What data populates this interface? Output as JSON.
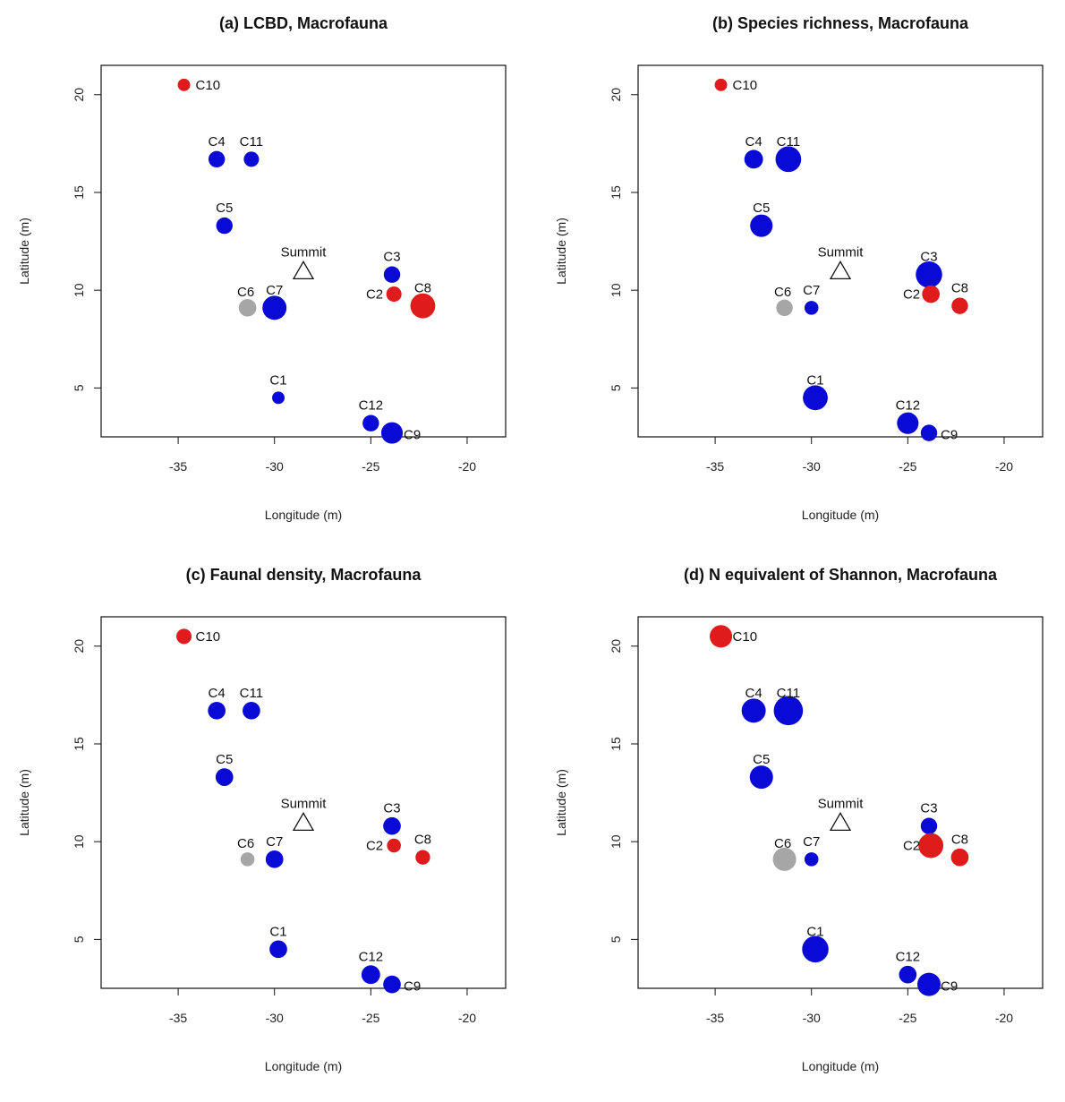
{
  "colors": {
    "blue": "#0a0ad6",
    "red": "#e01b1b",
    "gray": "#a6a6a6"
  },
  "summit": {
    "label": "Summit",
    "x": -28.5,
    "y": 11.0
  },
  "chart_data": [
    {
      "type": "scatter",
      "title": "(a) LCBD, Macrofauna",
      "xlabel": "Longitude (m)",
      "ylabel": "Latitude (m)",
      "xlim": [
        -39,
        -18
      ],
      "ylim": [
        2.5,
        21.5
      ],
      "xticks": [
        -35,
        -30,
        -25,
        -20
      ],
      "yticks": [
        5,
        10,
        15,
        20
      ],
      "points": [
        {
          "label": "C10",
          "x": -34.7,
          "y": 20.5,
          "size": 0.4,
          "color": "red"
        },
        {
          "label": "C4",
          "x": -33.0,
          "y": 16.7,
          "size": 0.7,
          "color": "blue"
        },
        {
          "label": "C11",
          "x": -31.2,
          "y": 16.7,
          "size": 0.6,
          "color": "blue"
        },
        {
          "label": "C5",
          "x": -32.6,
          "y": 13.3,
          "size": 0.7,
          "color": "blue"
        },
        {
          "label": "C6",
          "x": -31.4,
          "y": 9.1,
          "size": 0.8,
          "color": "gray"
        },
        {
          "label": "C7",
          "x": -30.0,
          "y": 9.1,
          "size": 1.5,
          "color": "blue"
        },
        {
          "label": "C1",
          "x": -29.8,
          "y": 4.5,
          "size": 0.4,
          "color": "blue"
        },
        {
          "label": "C3",
          "x": -23.9,
          "y": 10.8,
          "size": 0.7,
          "color": "blue"
        },
        {
          "label": "C2",
          "x": -23.8,
          "y": 9.8,
          "size": 0.6,
          "color": "red"
        },
        {
          "label": "C8",
          "x": -22.3,
          "y": 9.2,
          "size": 1.6,
          "color": "red"
        },
        {
          "label": "C12",
          "x": -25.0,
          "y": 3.2,
          "size": 0.7,
          "color": "blue"
        },
        {
          "label": "C9",
          "x": -23.9,
          "y": 2.7,
          "size": 1.2,
          "color": "blue"
        }
      ]
    },
    {
      "type": "scatter",
      "title": "(b) Species richness, Macrofauna",
      "xlabel": "Longitude (m)",
      "ylabel": "Latitude (m)",
      "xlim": [
        -39,
        -18
      ],
      "ylim": [
        2.5,
        21.5
      ],
      "xticks": [
        -35,
        -30,
        -25,
        -20
      ],
      "yticks": [
        5,
        10,
        15,
        20
      ],
      "points": [
        {
          "label": "C10",
          "x": -34.7,
          "y": 20.5,
          "size": 0.4,
          "color": "red"
        },
        {
          "label": "C4",
          "x": -33.0,
          "y": 16.7,
          "size": 0.9,
          "color": "blue"
        },
        {
          "label": "C11",
          "x": -31.2,
          "y": 16.7,
          "size": 1.7,
          "color": "blue"
        },
        {
          "label": "C5",
          "x": -32.6,
          "y": 13.3,
          "size": 1.3,
          "color": "blue"
        },
        {
          "label": "C6",
          "x": -31.4,
          "y": 9.1,
          "size": 0.7,
          "color": "gray"
        },
        {
          "label": "C7",
          "x": -30.0,
          "y": 9.1,
          "size": 0.5,
          "color": "blue"
        },
        {
          "label": "C1",
          "x": -29.8,
          "y": 4.5,
          "size": 1.6,
          "color": "blue"
        },
        {
          "label": "C3",
          "x": -23.9,
          "y": 10.8,
          "size": 1.8,
          "color": "blue"
        },
        {
          "label": "C2",
          "x": -23.8,
          "y": 9.8,
          "size": 0.8,
          "color": "red"
        },
        {
          "label": "C8",
          "x": -22.3,
          "y": 9.2,
          "size": 0.7,
          "color": "red"
        },
        {
          "label": "C12",
          "x": -25.0,
          "y": 3.2,
          "size": 1.2,
          "color": "blue"
        },
        {
          "label": "C9",
          "x": -23.9,
          "y": 2.7,
          "size": 0.7,
          "color": "blue"
        }
      ]
    },
    {
      "type": "scatter",
      "title": "(c) Faunal density, Macrofauna",
      "xlabel": "Longitude (m)",
      "ylabel": "Latitude (m)",
      "xlim": [
        -39,
        -18
      ],
      "ylim": [
        2.5,
        21.5
      ],
      "xticks": [
        -35,
        -30,
        -25,
        -20
      ],
      "yticks": [
        5,
        10,
        15,
        20
      ],
      "points": [
        {
          "label": "C10",
          "x": -34.7,
          "y": 20.5,
          "size": 0.6,
          "color": "red"
        },
        {
          "label": "C4",
          "x": -33.0,
          "y": 16.7,
          "size": 0.8,
          "color": "blue"
        },
        {
          "label": "C11",
          "x": -31.2,
          "y": 16.7,
          "size": 0.8,
          "color": "blue"
        },
        {
          "label": "C5",
          "x": -32.6,
          "y": 13.3,
          "size": 0.8,
          "color": "blue"
        },
        {
          "label": "C6",
          "x": -31.4,
          "y": 9.1,
          "size": 0.5,
          "color": "gray"
        },
        {
          "label": "C7",
          "x": -30.0,
          "y": 9.1,
          "size": 0.8,
          "color": "blue"
        },
        {
          "label": "C1",
          "x": -29.8,
          "y": 4.5,
          "size": 0.8,
          "color": "blue"
        },
        {
          "label": "C3",
          "x": -23.9,
          "y": 10.8,
          "size": 0.8,
          "color": "blue"
        },
        {
          "label": "C2",
          "x": -23.8,
          "y": 9.8,
          "size": 0.5,
          "color": "red"
        },
        {
          "label": "C8",
          "x": -22.3,
          "y": 9.2,
          "size": 0.55,
          "color": "red"
        },
        {
          "label": "C12",
          "x": -25.0,
          "y": 3.2,
          "size": 0.9,
          "color": "blue"
        },
        {
          "label": "C9",
          "x": -23.9,
          "y": 2.7,
          "size": 0.8,
          "color": "blue"
        }
      ]
    },
    {
      "type": "scatter",
      "title": "(d) N equivalent of Shannon, Macrofauna",
      "xlabel": "Longitude (m)",
      "ylabel": "Latitude (m)",
      "xlim": [
        -39,
        -18
      ],
      "ylim": [
        2.5,
        21.5
      ],
      "xticks": [
        -35,
        -30,
        -25,
        -20
      ],
      "yticks": [
        5,
        10,
        15,
        20
      ],
      "points": [
        {
          "label": "C10",
          "x": -34.7,
          "y": 20.5,
          "size": 1.3,
          "color": "red"
        },
        {
          "label": "C4",
          "x": -33.0,
          "y": 16.7,
          "size": 1.5,
          "color": "blue"
        },
        {
          "label": "C11",
          "x": -31.2,
          "y": 16.7,
          "size": 2.2,
          "color": "blue"
        },
        {
          "label": "C5",
          "x": -32.6,
          "y": 13.3,
          "size": 1.4,
          "color": "blue"
        },
        {
          "label": "C6",
          "x": -31.4,
          "y": 9.1,
          "size": 1.4,
          "color": "gray"
        },
        {
          "label": "C7",
          "x": -30.0,
          "y": 9.1,
          "size": 0.5,
          "color": "blue"
        },
        {
          "label": "C1",
          "x": -29.8,
          "y": 4.5,
          "size": 1.8,
          "color": "blue"
        },
        {
          "label": "C3",
          "x": -23.9,
          "y": 10.8,
          "size": 0.7,
          "color": "blue"
        },
        {
          "label": "C2",
          "x": -23.8,
          "y": 9.8,
          "size": 1.6,
          "color": "red"
        },
        {
          "label": "C8",
          "x": -22.3,
          "y": 9.2,
          "size": 0.8,
          "color": "red"
        },
        {
          "label": "C12",
          "x": -25.0,
          "y": 3.2,
          "size": 0.8,
          "color": "blue"
        },
        {
          "label": "C9",
          "x": -23.9,
          "y": 2.7,
          "size": 1.4,
          "color": "blue"
        }
      ]
    }
  ]
}
